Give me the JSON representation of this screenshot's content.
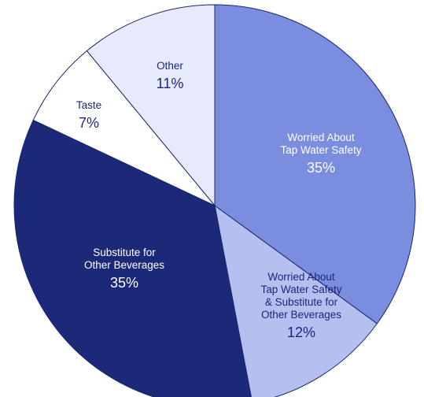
{
  "chart_data": {
    "type": "pie",
    "title": "",
    "slices": [
      {
        "label_lines": [
          "Worried About",
          "Tap Water Safety"
        ],
        "value": 35,
        "value_label": "35%",
        "color": "#7b8ddf",
        "text_color": "#ffffff"
      },
      {
        "label_lines": [
          "Worried About",
          "Tap Water Safety",
          "& Substitute for",
          "Other Beverages"
        ],
        "value": 12,
        "value_label": "12%",
        "color": "#b5bff0",
        "text_color": "#1c2878"
      },
      {
        "label_lines": [
          "Substitute for",
          "Other Beverages"
        ],
        "value": 35,
        "value_label": "35%",
        "color": "#1c2878",
        "text_color": "#ffffff"
      },
      {
        "label_lines": [
          "Taste"
        ],
        "value": 7,
        "value_label": "7%",
        "color": "#ffffff",
        "text_color": "#1c2878"
      },
      {
        "label_lines": [
          "Other"
        ],
        "value": 11,
        "value_label": "11%",
        "color": "#e6eafa",
        "text_color": "#1c2878"
      }
    ]
  }
}
